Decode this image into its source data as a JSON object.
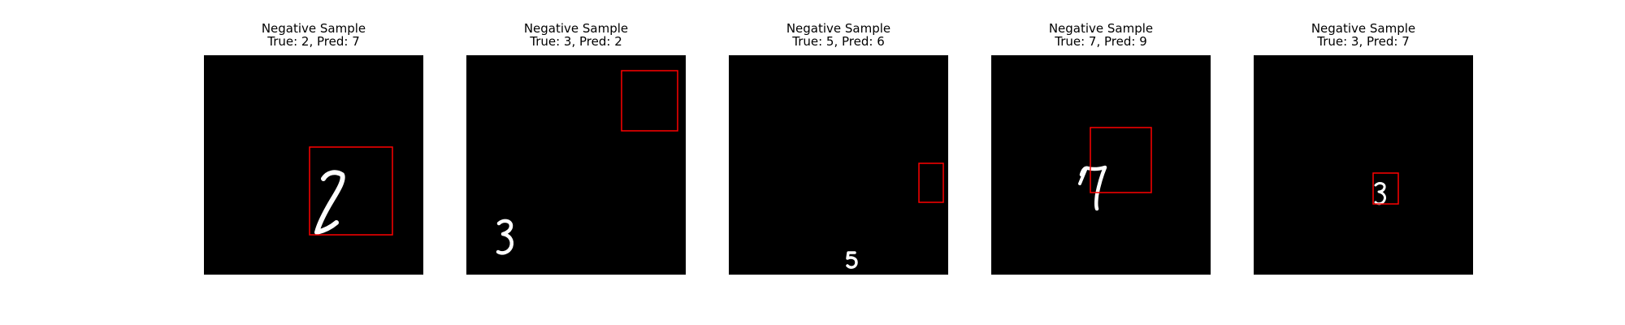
{
  "panels": [
    {
      "line1": "Negative Sample",
      "line2": "True: 2, Pred: 7",
      "digit_icon": "digit-2-icon"
    },
    {
      "line1": "Negative Sample",
      "line2": "True: 3, Pred: 2",
      "digit_icon": "digit-3-icon"
    },
    {
      "line1": "Negative Sample",
      "line2": "True: 5, Pred: 6",
      "digit_icon": "digit-5-icon"
    },
    {
      "line1": "Negative Sample",
      "line2": "True: 7, Pred: 9",
      "digit_icon": "digit-7-icon"
    },
    {
      "line1": "Negative Sample",
      "line2": "True: 3, Pred: 7",
      "digit_icon": "digit-3-icon"
    }
  ],
  "colors": {
    "image_background": "#000000",
    "digit": "#ffffff",
    "box": "#ff0000"
  }
}
